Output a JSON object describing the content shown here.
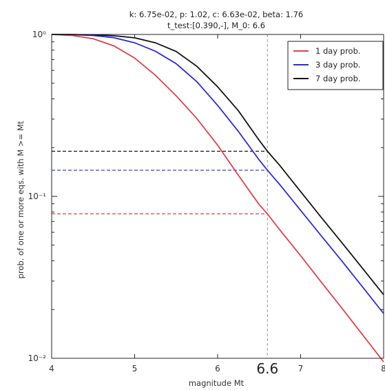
{
  "chart_data": {
    "type": "line",
    "title_line1": "k: 6.75e-02, p: 1.02, c: 6.63e-02, beta: 1.76",
    "title_line2": "t_test:[0.390,-], M_0: 6.6",
    "xlabel": "magnitude Mt",
    "ylabel": "prob. of one or more eqs. with M >= Mt",
    "xlim": [
      4,
      8
    ],
    "ylim": [
      0.01,
      1
    ],
    "yscale": "log",
    "xticks": [
      "4",
      "5",
      "6",
      "7",
      "8"
    ],
    "yticks": [
      "10⁰",
      "10⁻¹",
      "10⁻²"
    ],
    "marked_magnitude": 6.6,
    "marked_magnitude_label": "6.6",
    "legend_position": "top-right",
    "series": [
      {
        "name": "1 day prob.",
        "color": "#e0404a",
        "x": [
          4.0,
          4.25,
          4.5,
          4.75,
          5.0,
          5.25,
          5.5,
          5.75,
          6.0,
          6.25,
          6.5,
          6.6,
          6.75,
          7.0,
          7.25,
          7.5,
          7.75,
          8.0
        ],
        "y": [
          1.0,
          0.985,
          0.94,
          0.85,
          0.715,
          0.56,
          0.418,
          0.302,
          0.207,
          0.135,
          0.089,
          0.078,
          0.062,
          0.043,
          0.0295,
          0.0203,
          0.0139,
          0.0095
        ]
      },
      {
        "name": "3 day prob.",
        "color": "#2a2ad8",
        "x": [
          4.0,
          4.25,
          4.5,
          4.75,
          5.0,
          5.25,
          5.5,
          5.75,
          6.0,
          6.25,
          6.5,
          6.6,
          6.75,
          7.0,
          7.25,
          7.5,
          7.75,
          8.0
        ],
        "y": [
          1.0,
          0.998,
          0.985,
          0.955,
          0.888,
          0.788,
          0.66,
          0.51,
          0.365,
          0.252,
          0.168,
          0.145,
          0.118,
          0.082,
          0.057,
          0.0397,
          0.0274,
          0.0189
        ]
      },
      {
        "name": "7 day prob.",
        "color": "#111111",
        "x": [
          4.0,
          4.25,
          4.5,
          4.75,
          5.0,
          5.25,
          5.5,
          5.75,
          6.0,
          6.25,
          6.5,
          6.6,
          6.75,
          7.0,
          7.25,
          7.5,
          7.75,
          8.0
        ],
        "y": [
          1.0,
          0.999,
          0.995,
          0.982,
          0.953,
          0.888,
          0.785,
          0.635,
          0.475,
          0.338,
          0.222,
          0.19,
          0.155,
          0.107,
          0.074,
          0.0515,
          0.0357,
          0.0247
        ]
      }
    ],
    "reference_lines": [
      {
        "series": "1 day prob.",
        "y": 0.078
      },
      {
        "series": "3 day prob.",
        "y": 0.145
      },
      {
        "series": "7 day prob.",
        "y": 0.19
      }
    ]
  }
}
